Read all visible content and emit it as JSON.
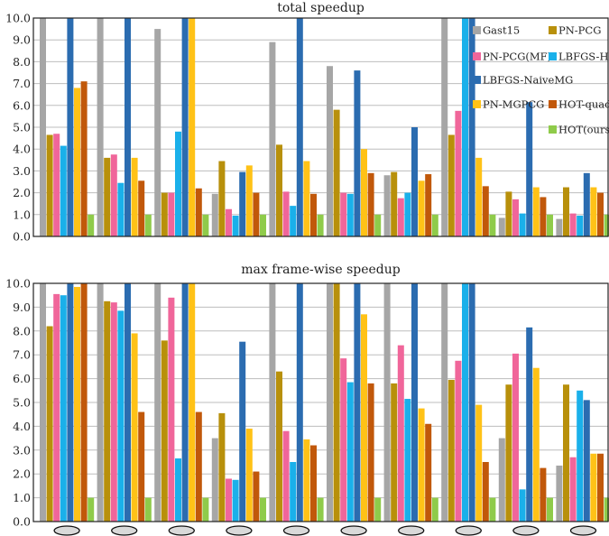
{
  "colors": {
    "Gast15": "#a6a6a6",
    "PN-PCG": "#b8900b",
    "PN-PCG(MF)": "#f0669a",
    "LBFGS-H": "#1ab0ea",
    "LBFGS-NaiveMG": "#2b6cb0",
    "PN-MGPCG": "#ffc217",
    "HOT-quad": "#c1580a",
    "HOT(ours)": "#8fcb4a",
    "ellipse_fill": "#d9d9d9"
  },
  "legend": [
    "Gast15",
    "PN-PCG",
    "PN-PCG(MF)",
    "LBFGS-H",
    "LBFGS-NaiveMG",
    "PN-MGPCG",
    "HOT-quad",
    "HOT(ours)"
  ],
  "chart_data": [
    {
      "type": "bar",
      "title": "total speedup",
      "ylim": [
        0,
        10
      ],
      "yticks": [
        "0.0",
        "1.0",
        "2.0",
        "3.0",
        "4.0",
        "5.0",
        "6.0",
        "7.0",
        "8.0",
        "9.0",
        "10.0"
      ],
      "categories": [
        "",
        "",
        "",
        "",
        "",
        "",
        "",
        "",
        "",
        ""
      ],
      "grid": true,
      "legend_placement": "right",
      "series": [
        {
          "name": "Gast15",
          "values": [
            10.0,
            10.0,
            9.5,
            1.95,
            8.9,
            7.8,
            2.8,
            10.0,
            0.85,
            0.8
          ]
        },
        {
          "name": "PN-PCG",
          "values": [
            4.65,
            3.6,
            2.0,
            3.45,
            4.2,
            5.8,
            2.95,
            4.65,
            2.05,
            2.25
          ]
        },
        {
          "name": "PN-PCG(MF)",
          "values": [
            4.7,
            3.75,
            2.0,
            1.25,
            2.05,
            2.0,
            1.75,
            5.75,
            1.7,
            1.05
          ]
        },
        {
          "name": "LBFGS-H",
          "values": [
            4.15,
            2.45,
            4.8,
            0.95,
            1.4,
            1.95,
            2.0,
            10.0,
            1.05,
            0.95
          ]
        },
        {
          "name": "LBFGS-NaiveMG",
          "values": [
            10.0,
            10.0,
            10.0,
            2.95,
            10.0,
            7.6,
            5.0,
            10.0,
            6.15,
            2.9
          ]
        },
        {
          "name": "PN-MGPCG",
          "values": [
            6.8,
            3.6,
            10.0,
            3.25,
            3.45,
            4.0,
            2.55,
            3.6,
            2.25,
            2.25
          ]
        },
        {
          "name": "HOT-quad",
          "values": [
            7.1,
            2.55,
            2.2,
            2.0,
            1.95,
            2.9,
            2.85,
            2.3,
            1.8,
            2.0
          ]
        },
        {
          "name": "HOT(ours)",
          "values": [
            1.0,
            1.0,
            1.0,
            1.0,
            1.0,
            1.0,
            1.0,
            1.0,
            1.0,
            1.0
          ]
        }
      ]
    },
    {
      "type": "bar",
      "title": "max frame-wise speedup",
      "ylim": [
        0,
        10
      ],
      "yticks": [
        "0.0",
        "1.0",
        "2.0",
        "3.0",
        "4.0",
        "5.0",
        "6.0",
        "7.0",
        "8.0",
        "9.0",
        "10.0"
      ],
      "categories": [
        "",
        "",
        "",
        "",
        "",
        "",
        "",
        "",
        "",
        ""
      ],
      "grid": true,
      "series": [
        {
          "name": "Gast15",
          "values": [
            10.0,
            10.0,
            10.0,
            3.5,
            10.0,
            10.0,
            10.0,
            10.0,
            3.5,
            2.35
          ]
        },
        {
          "name": "PN-PCG",
          "values": [
            8.2,
            9.25,
            7.6,
            4.55,
            6.3,
            10.0,
            5.8,
            5.95,
            5.75,
            5.75
          ]
        },
        {
          "name": "PN-PCG(MF)",
          "values": [
            9.55,
            9.2,
            9.4,
            1.8,
            3.8,
            6.85,
            7.4,
            6.75,
            7.05,
            2.7
          ]
        },
        {
          "name": "LBFGS-H",
          "values": [
            9.5,
            8.85,
            2.65,
            1.75,
            2.5,
            5.85,
            5.15,
            10.0,
            1.35,
            5.5
          ]
        },
        {
          "name": "LBFGS-NaiveMG",
          "values": [
            10.0,
            10.0,
            10.0,
            7.55,
            10.0,
            10.0,
            10.0,
            10.0,
            8.15,
            5.1
          ]
        },
        {
          "name": "PN-MGPCG",
          "values": [
            9.85,
            7.9,
            10.0,
            3.9,
            3.45,
            8.7,
            4.75,
            4.9,
            6.45,
            2.85
          ]
        },
        {
          "name": "HOT-quad",
          "values": [
            10.0,
            4.6,
            4.6,
            2.1,
            3.2,
            5.8,
            4.1,
            2.5,
            2.25,
            2.85
          ]
        },
        {
          "name": "HOT(ours)",
          "values": [
            1.0,
            1.0,
            1.0,
            1.0,
            1.0,
            1.0,
            1.0,
            1.0,
            1.0,
            1.0
          ]
        }
      ]
    }
  ]
}
